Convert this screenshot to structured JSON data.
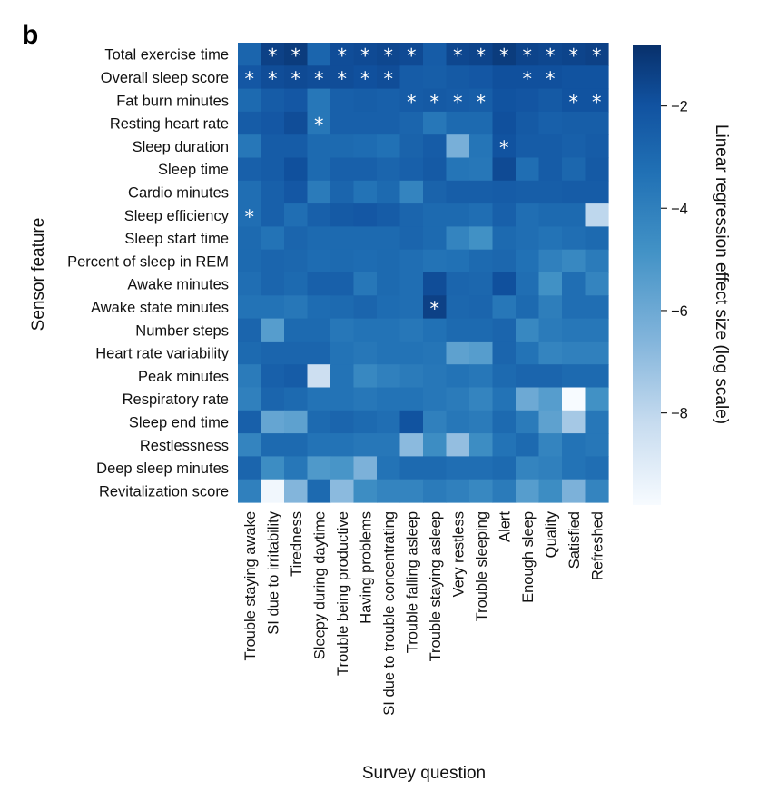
{
  "panel_label": "b",
  "chart_data": {
    "type": "heatmap",
    "title": "",
    "xlabel": "Survey question",
    "ylabel": "Sensor feature",
    "colorbar": {
      "label": "Linear regression effect size (log scale)",
      "range": [
        -9.8,
        -0.8
      ],
      "ticks": [
        -2,
        -4,
        -6,
        -8
      ],
      "tick_labels": [
        "−2",
        "−4",
        "−6",
        "−8"
      ],
      "colormap": "Blues (reversed: high values dark blue)"
    },
    "rows": [
      "Total exercise time",
      "Overall sleep score",
      "Fat burn minutes",
      "Resting heart rate",
      "Sleep duration",
      "Sleep time",
      "Cardio minutes",
      "Sleep efficiency",
      "Sleep start time",
      "Percent of sleep in REM",
      "Awake minutes",
      "Awake state minutes",
      "Number steps",
      "Heart rate variability",
      "Peak minutes",
      "Respiratory rate",
      "Sleep end time",
      "Restlessness",
      "Deep sleep minutes",
      "Revitalization score"
    ],
    "columns": [
      "Trouble staying awake",
      "SI due to irritability",
      "Tiredness",
      "Sleepy during daytime",
      "Trouble being productive",
      "Having problems",
      "SI due to trouble concentrating",
      "Trouble falling asleep",
      "Trouble staying asleep",
      "Very restless",
      "Trouble sleeping",
      "Alert",
      "Enough sleep",
      "Quality",
      "Satisfied",
      "Refreshed"
    ],
    "values": [
      [
        -2.8,
        -1.4,
        -1.2,
        -2.8,
        -1.8,
        -1.7,
        -1.6,
        -1.7,
        -2.4,
        -1.6,
        -1.5,
        -1.2,
        -1.5,
        -1.6,
        -1.5,
        -1.4
      ],
      [
        -2.2,
        -1.8,
        -1.7,
        -1.8,
        -1.8,
        -1.9,
        -1.8,
        -2.4,
        -2.5,
        -2.3,
        -2.2,
        -1.9,
        -1.9,
        -1.9,
        -2.0,
        -2.0
      ],
      [
        -3.0,
        -2.4,
        -2.2,
        -3.6,
        -2.6,
        -2.5,
        -2.6,
        -2.4,
        -2.3,
        -2.4,
        -2.5,
        -2.0,
        -2.1,
        -2.3,
        -2.0,
        -2.0
      ],
      [
        -2.4,
        -2.2,
        -1.8,
        -3.6,
        -2.6,
        -2.6,
        -2.6,
        -2.8,
        -3.6,
        -3.0,
        -3.0,
        -1.9,
        -2.3,
        -2.6,
        -2.5,
        -2.5
      ],
      [
        -3.6,
        -2.4,
        -2.4,
        -3.0,
        -3.0,
        -3.1,
        -3.3,
        -2.7,
        -2.4,
        -6.3,
        -3.5,
        -2.0,
        -2.4,
        -2.4,
        -2.6,
        -2.4
      ],
      [
        -2.6,
        -2.4,
        -1.9,
        -3.0,
        -2.6,
        -2.6,
        -2.8,
        -2.6,
        -2.3,
        -3.5,
        -3.6,
        -1.7,
        -3.2,
        -2.4,
        -2.9,
        -2.3
      ],
      [
        -3.2,
        -2.6,
        -2.2,
        -3.8,
        -2.8,
        -3.4,
        -3.0,
        -4.2,
        -2.7,
        -2.5,
        -2.5,
        -2.4,
        -2.5,
        -2.5,
        -2.4,
        -2.4
      ],
      [
        -3.2,
        -2.6,
        -3.2,
        -2.6,
        -2.3,
        -2.2,
        -2.4,
        -2.8,
        -3.0,
        -3.0,
        -3.2,
        -2.6,
        -3.2,
        -3.0,
        -3.0,
        -8.0
      ],
      [
        -3.0,
        -3.4,
        -2.8,
        -3.0,
        -3.0,
        -3.0,
        -3.0,
        -2.8,
        -3.0,
        -4.2,
        -4.8,
        -3.0,
        -3.2,
        -3.4,
        -3.2,
        -3.0
      ],
      [
        -3.0,
        -2.8,
        -2.9,
        -3.1,
        -3.0,
        -3.1,
        -3.0,
        -3.2,
        -3.4,
        -3.3,
        -3.0,
        -2.9,
        -3.3,
        -4.0,
        -4.4,
        -3.8
      ],
      [
        -3.2,
        -2.8,
        -3.0,
        -2.6,
        -2.6,
        -3.6,
        -3.0,
        -3.2,
        -1.8,
        -2.8,
        -2.9,
        -1.9,
        -3.2,
        -4.8,
        -3.2,
        -4.2
      ],
      [
        -3.4,
        -3.4,
        -3.6,
        -3.1,
        -3.0,
        -2.8,
        -3.1,
        -3.2,
        -1.4,
        -2.9,
        -2.8,
        -3.6,
        -3.0,
        -3.9,
        -3.2,
        -3.2
      ],
      [
        -2.8,
        -5.4,
        -3.0,
        -3.0,
        -3.6,
        -3.4,
        -3.4,
        -3.6,
        -3.3,
        -3.0,
        -3.0,
        -2.8,
        -4.4,
        -3.8,
        -3.6,
        -3.6
      ],
      [
        -3.0,
        -2.8,
        -2.8,
        -2.8,
        -3.4,
        -3.6,
        -3.4,
        -3.4,
        -3.5,
        -5.6,
        -5.4,
        -2.8,
        -3.4,
        -4.2,
        -4.0,
        -4.0
      ],
      [
        -3.8,
        -2.6,
        -2.4,
        -8.4,
        -3.4,
        -4.4,
        -4.0,
        -3.8,
        -3.6,
        -3.4,
        -3.6,
        -3.0,
        -2.8,
        -2.8,
        -3.0,
        -3.0
      ],
      [
        -4.0,
        -2.8,
        -3.0,
        -3.4,
        -3.4,
        -3.6,
        -3.4,
        -3.4,
        -3.6,
        -3.8,
        -4.2,
        -3.4,
        -6.0,
        -5.4,
        -9.8,
        -4.8
      ],
      [
        -2.6,
        -5.8,
        -5.6,
        -3.0,
        -2.8,
        -3.0,
        -3.2,
        -2.0,
        -4.0,
        -3.6,
        -3.8,
        -3.0,
        -3.8,
        -5.6,
        -7.4,
        -3.6
      ],
      [
        -4.2,
        -3.0,
        -3.0,
        -3.4,
        -3.4,
        -3.6,
        -3.6,
        -6.8,
        -4.6,
        -7.0,
        -4.6,
        -3.4,
        -3.0,
        -4.2,
        -3.4,
        -3.6
      ],
      [
        -2.8,
        -4.6,
        -3.6,
        -5.2,
        -5.0,
        -6.4,
        -3.4,
        -3.0,
        -3.0,
        -3.2,
        -3.2,
        -3.0,
        -4.2,
        -4.0,
        -3.4,
        -3.2
      ],
      [
        -4.0,
        -9.6,
        -6.6,
        -3.0,
        -6.8,
        -4.6,
        -4.2,
        -4.2,
        -3.8,
        -4.0,
        -4.4,
        -3.8,
        -5.4,
        -4.6,
        -6.4,
        -4.2
      ]
    ],
    "significance_marker": "*",
    "significant": [
      [
        0,
        1
      ],
      [
        0,
        2
      ],
      [
        0,
        4
      ],
      [
        0,
        5
      ],
      [
        0,
        6
      ],
      [
        0,
        7
      ],
      [
        0,
        9
      ],
      [
        0,
        10
      ],
      [
        0,
        11
      ],
      [
        0,
        12
      ],
      [
        0,
        13
      ],
      [
        0,
        14
      ],
      [
        0,
        15
      ],
      [
        1,
        0
      ],
      [
        1,
        1
      ],
      [
        1,
        2
      ],
      [
        1,
        3
      ],
      [
        1,
        4
      ],
      [
        1,
        5
      ],
      [
        1,
        6
      ],
      [
        1,
        12
      ],
      [
        1,
        13
      ],
      [
        2,
        7
      ],
      [
        2,
        8
      ],
      [
        2,
        9
      ],
      [
        2,
        10
      ],
      [
        2,
        14
      ],
      [
        2,
        15
      ],
      [
        3,
        3
      ],
      [
        4,
        11
      ],
      [
        7,
        0
      ],
      [
        11,
        8
      ]
    ]
  }
}
